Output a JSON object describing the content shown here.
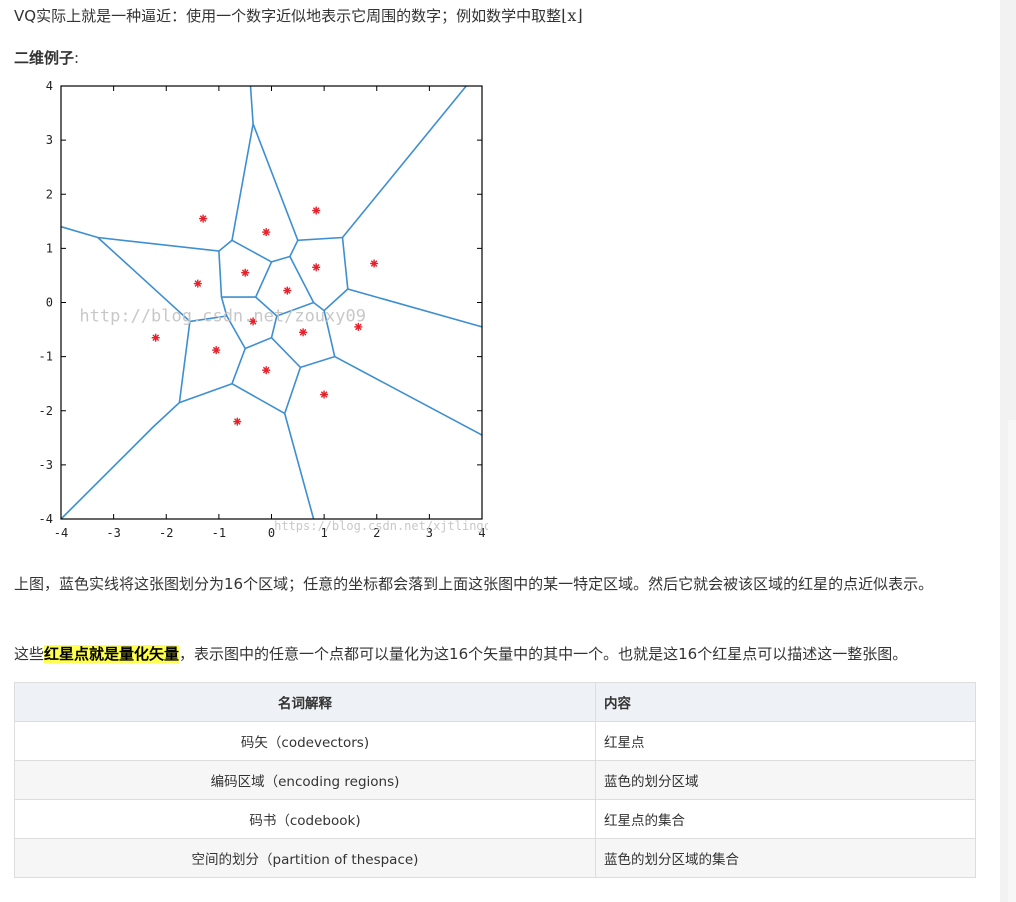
{
  "intro": {
    "text": "VQ实际上就是一种逼近：使用一个数字近似地表示它周围的数字；例如数学中取整",
    "floor_expr": "⌊x⌋"
  },
  "heading": {
    "text": "二维例子",
    "colon": ":"
  },
  "figure": {
    "x_ticks": [
      "-4",
      "-3",
      "-2",
      "-1",
      "0",
      "1",
      "2",
      "3",
      "4"
    ],
    "y_ticks": [
      "4",
      "3",
      "2",
      "1",
      "0",
      "-1",
      "-2",
      "-3",
      "-4"
    ],
    "watermark_1": "http://blog.csdn.net/zouxy09",
    "watermark_2": "https://blog.csdn.net/xjtlingcecq",
    "colors": {
      "edges": "#3d8fd1",
      "points": "#e8202a",
      "frame": "#000000"
    },
    "codevectors": [
      [
        -1.3,
        1.55
      ],
      [
        -0.1,
        1.3
      ],
      [
        0.85,
        1.7
      ],
      [
        -1.4,
        0.35
      ],
      [
        -0.5,
        0.55
      ],
      [
        0.85,
        0.65
      ],
      [
        1.95,
        0.72
      ],
      [
        0.3,
        0.22
      ],
      [
        -0.35,
        -0.35
      ],
      [
        0.6,
        -0.55
      ],
      [
        1.65,
        -0.45
      ],
      [
        -2.2,
        -0.65
      ],
      [
        -1.05,
        -0.88
      ],
      [
        -0.1,
        -1.25
      ],
      [
        1.0,
        -1.7
      ],
      [
        -0.65,
        -2.2
      ]
    ]
  },
  "description": "上图，蓝色实线将这张图划分为16个区域；任意的坐标都会落到上面这张图中的某一特定区域。然后它就会被该区域的红星的点近似表示。",
  "quant": {
    "prefix": "这些",
    "highlight": "红星点就是量化矢量",
    "suffix": "，表示图中的任意一个点都可以量化为这16个矢量中的其中一个。也就是这16个红星点可以描述这一整张图。"
  },
  "table": {
    "headers": [
      "名词解释",
      "内容"
    ],
    "rows": [
      [
        "码矢（codevectors)",
        "红星点"
      ],
      [
        "编码区域（encoding regions)",
        "蓝色的划分区域"
      ],
      [
        "码书（codebook)",
        "红星点的集合"
      ],
      [
        "空间的划分（partition of thespace)",
        "蓝色的划分区域的集合"
      ]
    ]
  }
}
